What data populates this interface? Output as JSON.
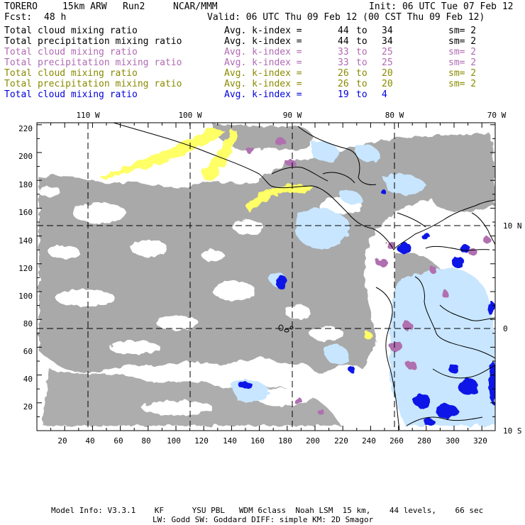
{
  "header": {
    "model": "TORERO",
    "resolution": "15km ARW",
    "run": "Run2",
    "org": "NCAR/MMM",
    "init": "Init: 06 UTC Tue 07 Feb 12",
    "fcst_label": "Fcst:",
    "fcst_value": "48 h",
    "valid": "Valid: 06 UTC Thu 09 Feb 12 (00 CST Thu 09 Feb 12)"
  },
  "legend": [
    {
      "name": "Total cloud mixing ratio",
      "kindex": "Avg. k-index =",
      "from": "44",
      "to_word": "to",
      "to": "34",
      "sm": "sm= 2",
      "color": "#000000"
    },
    {
      "name": "Total precipitation mixing ratio",
      "kindex": "Avg. k-index =",
      "from": "44",
      "to_word": "to",
      "to": "34",
      "sm": "sm= 2",
      "color": "#000000"
    },
    {
      "name": "Total cloud mixing ratio",
      "kindex": "Avg. k-index =",
      "from": "33",
      "to_word": "to",
      "to": "25",
      "sm": "sm= 2",
      "color": "#b06ab3"
    },
    {
      "name": "Total precipitation mixing ratio",
      "kindex": "Avg. k-index =",
      "from": "33",
      "to_word": "to",
      "to": "25",
      "sm": "sm= 2",
      "color": "#b06ab3"
    },
    {
      "name": "Total cloud mixing ratio",
      "kindex": "Avg. k-index =",
      "from": "26",
      "to_word": "to",
      "to": "20",
      "sm": "sm= 2",
      "color": "#8a8a00"
    },
    {
      "name": "Total precipitation mixing ratio",
      "kindex": "Avg. k-index =",
      "from": "26",
      "to_word": "to",
      "to": "20",
      "sm": "sm= 2",
      "color": "#8a8a00"
    },
    {
      "name": "Total cloud mixing ratio",
      "kindex": "Avg. k-index =",
      "from": "19",
      "to_word": "to",
      "to": "4",
      "sm": "",
      "color": "#0000dd"
    }
  ],
  "map": {
    "lon_labels": [
      "110 W",
      "100 W",
      "90 W",
      "80 W",
      "70 W"
    ],
    "lat_labels": [
      "10 N",
      "0",
      "10 S"
    ],
    "y_ticks": [
      "220",
      "200",
      "180",
      "160",
      "140",
      "120",
      "100",
      "80",
      "60",
      "40",
      "20"
    ],
    "x_ticks": [
      "20",
      "40",
      "60",
      "80",
      "100",
      "120",
      "140",
      "160",
      "180",
      "200",
      "220",
      "240",
      "260",
      "280",
      "300",
      "320"
    ],
    "colors": {
      "cloud_gray": "#a9a9a9",
      "yellow": "#ffff66",
      "purple": "#b070b0",
      "light_blue": "#c8e6ff",
      "blue": "#0a14e6",
      "coast": "#000000"
    }
  },
  "footer": {
    "line1": "Model Info: V3.3.1    KF      YSU PBL   WDM 6class  Noah LSM  15 km,    44 levels,    66 sec",
    "line2": "LW: Godd SW: Goddard DIFF: simple KM: 2D Smagor"
  }
}
